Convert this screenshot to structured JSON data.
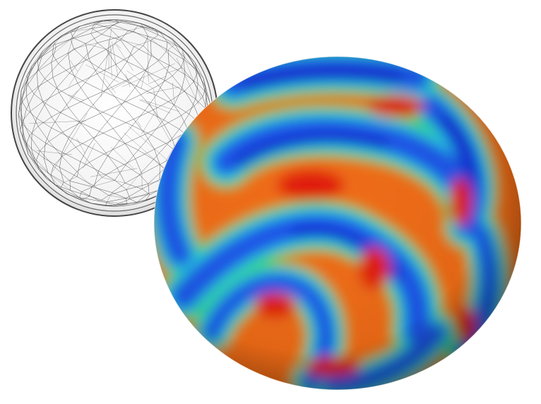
{
  "figure": {
    "description_labels": [],
    "background_color": "#ffffff",
    "mesh": {
      "icon": "wireframe-sphere-icon",
      "stroke_color": "#333333",
      "rim_color": "#555555"
    },
    "pattern_sphere": {
      "icon": "colored-sphere-icon",
      "colormap": [
        "#0a2fd0",
        "#1e7ff0",
        "#25d8e0",
        "#3ad24a",
        "#f2e23a",
        "#f07a18",
        "#e01a0a"
      ]
    }
  }
}
